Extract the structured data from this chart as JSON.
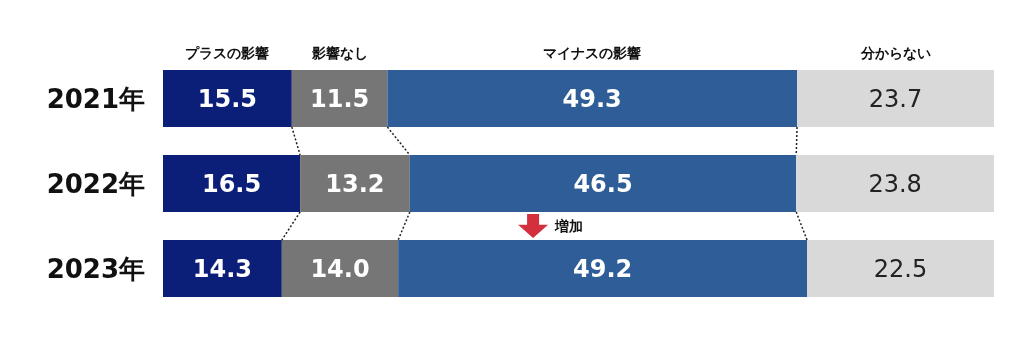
{
  "chart_data": {
    "type": "bar",
    "orientation": "horizontal",
    "stacked": true,
    "categories": [
      "2021年",
      "2022年",
      "2023年"
    ],
    "series": [
      {
        "name": "プラスの影響",
        "color": "#0b1f78",
        "values": [
          15.5,
          16.5,
          14.3
        ],
        "value_labels": [
          "15.5",
          "16.5",
          "14.3"
        ]
      },
      {
        "name": "影響なし",
        "color": "#767676",
        "values": [
          11.5,
          13.2,
          14.0
        ],
        "value_labels": [
          "11.5",
          "13.2",
          "14.0"
        ]
      },
      {
        "name": "マイナスの影響",
        "color": "#2f5d97",
        "values": [
          49.3,
          46.5,
          49.2
        ],
        "value_labels": [
          "49.3",
          "46.5",
          "49.2"
        ]
      },
      {
        "name": "分からない",
        "color": "#d9d9d9",
        "values": [
          23.7,
          23.8,
          22.5
        ],
        "value_labels": [
          "23.7",
          "23.8",
          "22.5"
        ]
      }
    ],
    "legend": false,
    "annotations": [
      "増加"
    ]
  }
}
